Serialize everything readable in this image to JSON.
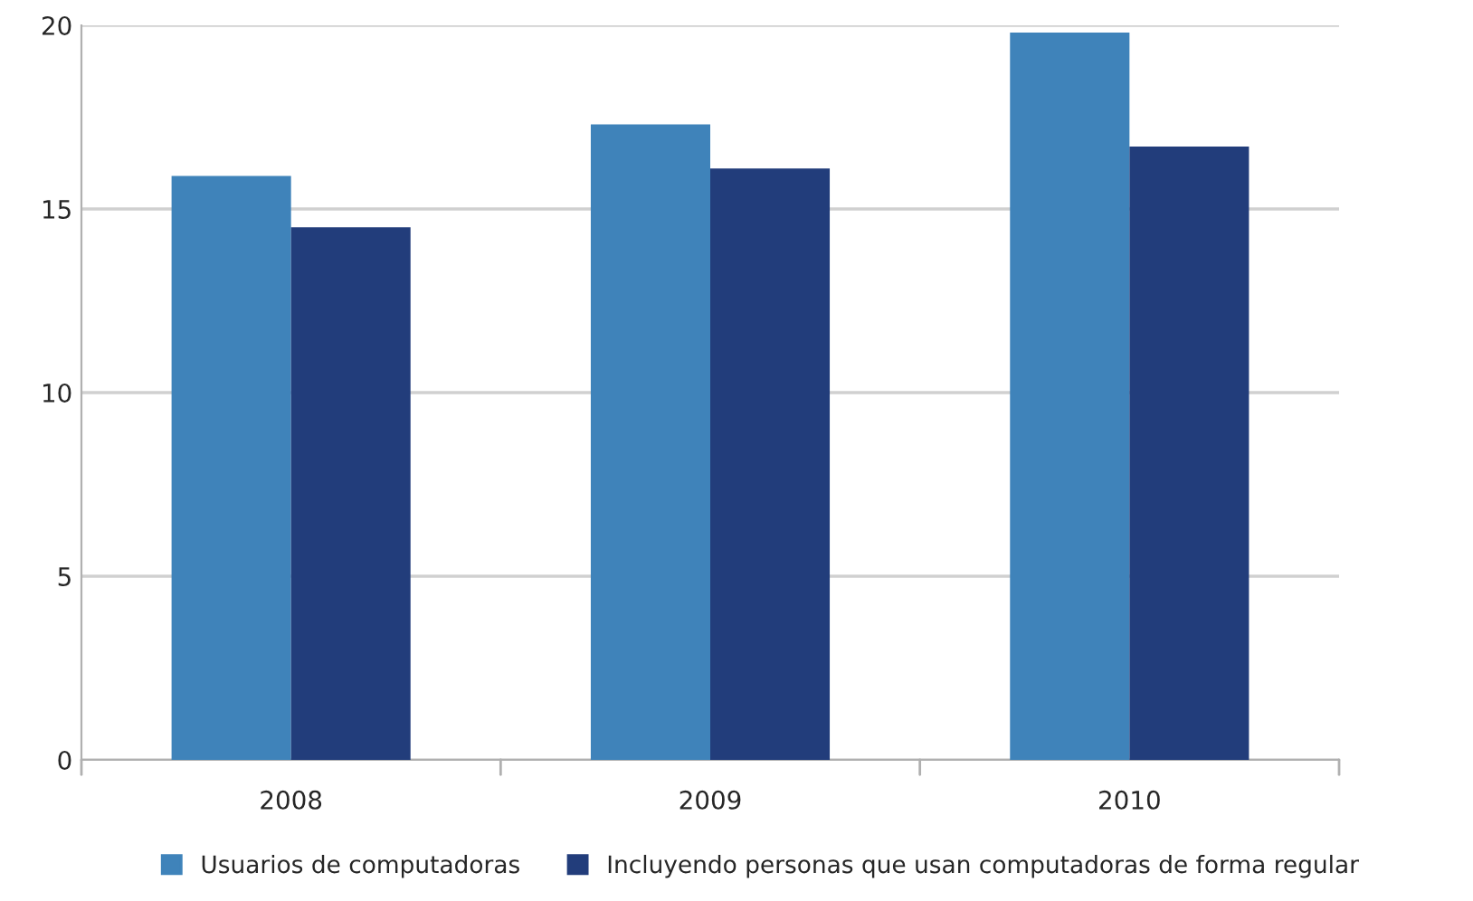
{
  "chart_data": {
    "type": "bar",
    "categories": [
      "2008",
      "2009",
      "2010"
    ],
    "series": [
      {
        "name": "Usuarios de computadoras",
        "color": "#3f83ba",
        "values": [
          15.9,
          17.3,
          19.8
        ]
      },
      {
        "name": "Incluyendo personas que usan computadoras de forma regular",
        "color": "#223d7b",
        "values": [
          14.5,
          16.1,
          16.7
        ]
      }
    ],
    "ylim": [
      0,
      20
    ],
    "yticks": [
      0,
      5,
      10,
      15,
      20
    ],
    "grid": "y",
    "legend": "bottom"
  }
}
